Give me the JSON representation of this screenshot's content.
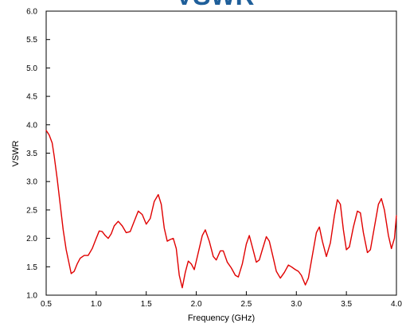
{
  "chart_data": {
    "type": "line",
    "title": "VSWR",
    "xlabel": "Frequency (GHz)",
    "ylabel": "VSWR",
    "xlim": [
      0.5,
      4.0
    ],
    "ylim": [
      1.0,
      6.0
    ],
    "x_ticks": [
      "0.5",
      "1.0",
      "1.5",
      "2.0",
      "2.5",
      "3.0",
      "3.5",
      "4.0"
    ],
    "y_ticks": [
      "1.0",
      "1.5",
      "2.0",
      "2.5",
      "3.0",
      "3.5",
      "4.0",
      "4.5",
      "5.0",
      "5.5",
      "6.0"
    ],
    "grid": false,
    "legend": "none",
    "series": [
      {
        "color": "#e00000",
        "points": [
          [
            0.5,
            3.9
          ],
          [
            0.53,
            3.82
          ],
          [
            0.56,
            3.68
          ],
          [
            0.58,
            3.45
          ],
          [
            0.61,
            3.05
          ],
          [
            0.64,
            2.6
          ],
          [
            0.67,
            2.15
          ],
          [
            0.7,
            1.8
          ],
          [
            0.73,
            1.55
          ],
          [
            0.75,
            1.38
          ],
          [
            0.78,
            1.42
          ],
          [
            0.81,
            1.55
          ],
          [
            0.84,
            1.65
          ],
          [
            0.88,
            1.7
          ],
          [
            0.92,
            1.7
          ],
          [
            0.96,
            1.82
          ],
          [
            1.0,
            2.0
          ],
          [
            1.03,
            2.13
          ],
          [
            1.06,
            2.12
          ],
          [
            1.09,
            2.05
          ],
          [
            1.12,
            2.0
          ],
          [
            1.15,
            2.08
          ],
          [
            1.18,
            2.22
          ],
          [
            1.22,
            2.3
          ],
          [
            1.26,
            2.22
          ],
          [
            1.3,
            2.1
          ],
          [
            1.34,
            2.12
          ],
          [
            1.38,
            2.3
          ],
          [
            1.42,
            2.48
          ],
          [
            1.46,
            2.42
          ],
          [
            1.5,
            2.25
          ],
          [
            1.54,
            2.35
          ],
          [
            1.58,
            2.65
          ],
          [
            1.62,
            2.77
          ],
          [
            1.65,
            2.6
          ],
          [
            1.68,
            2.18
          ],
          [
            1.71,
            1.95
          ],
          [
            1.74,
            1.98
          ],
          [
            1.77,
            2.0
          ],
          [
            1.8,
            1.82
          ],
          [
            1.83,
            1.35
          ],
          [
            1.86,
            1.13
          ],
          [
            1.89,
            1.4
          ],
          [
            1.92,
            1.6
          ],
          [
            1.95,
            1.55
          ],
          [
            1.98,
            1.45
          ],
          [
            2.02,
            1.75
          ],
          [
            2.06,
            2.05
          ],
          [
            2.09,
            2.15
          ],
          [
            2.13,
            1.95
          ],
          [
            2.17,
            1.68
          ],
          [
            2.2,
            1.62
          ],
          [
            2.24,
            1.78
          ],
          [
            2.27,
            1.78
          ],
          [
            2.31,
            1.58
          ],
          [
            2.35,
            1.48
          ],
          [
            2.39,
            1.35
          ],
          [
            2.42,
            1.32
          ],
          [
            2.46,
            1.55
          ],
          [
            2.5,
            1.9
          ],
          [
            2.53,
            2.05
          ],
          [
            2.56,
            1.85
          ],
          [
            2.6,
            1.58
          ],
          [
            2.63,
            1.62
          ],
          [
            2.66,
            1.8
          ],
          [
            2.7,
            2.03
          ],
          [
            2.73,
            1.95
          ],
          [
            2.77,
            1.65
          ],
          [
            2.8,
            1.42
          ],
          [
            2.84,
            1.3
          ],
          [
            2.88,
            1.4
          ],
          [
            2.92,
            1.53
          ],
          [
            2.95,
            1.5
          ],
          [
            2.99,
            1.45
          ],
          [
            3.02,
            1.42
          ],
          [
            3.05,
            1.35
          ],
          [
            3.09,
            1.18
          ],
          [
            3.12,
            1.3
          ],
          [
            3.16,
            1.7
          ],
          [
            3.2,
            2.1
          ],
          [
            3.23,
            2.2
          ],
          [
            3.26,
            1.95
          ],
          [
            3.3,
            1.68
          ],
          [
            3.34,
            1.92
          ],
          [
            3.38,
            2.4
          ],
          [
            3.41,
            2.68
          ],
          [
            3.44,
            2.6
          ],
          [
            3.47,
            2.15
          ],
          [
            3.5,
            1.8
          ],
          [
            3.53,
            1.85
          ],
          [
            3.57,
            2.2
          ],
          [
            3.61,
            2.48
          ],
          [
            3.64,
            2.45
          ],
          [
            3.67,
            2.1
          ],
          [
            3.71,
            1.75
          ],
          [
            3.74,
            1.8
          ],
          [
            3.78,
            2.2
          ],
          [
            3.82,
            2.6
          ],
          [
            3.85,
            2.7
          ],
          [
            3.88,
            2.5
          ],
          [
            3.92,
            2.05
          ],
          [
            3.95,
            1.82
          ],
          [
            3.98,
            2.0
          ],
          [
            4.0,
            2.4
          ]
        ]
      }
    ]
  }
}
